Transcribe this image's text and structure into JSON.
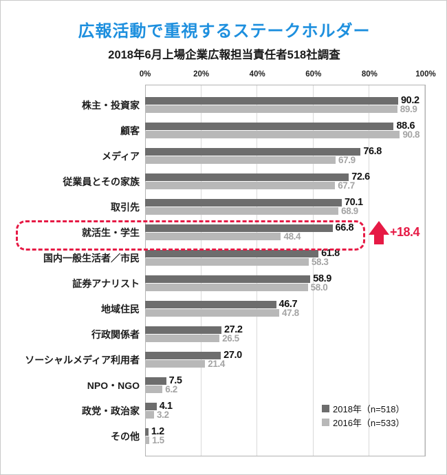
{
  "page": {
    "title": "広報活動で重視するステークホルダー",
    "subtitle": "2018年6月上場企業広報担当責任者518社調査"
  },
  "colors": {
    "title_blue": "#1d8fde",
    "bar_2018": "#6d6d6d",
    "bar_2016": "#b8b8b8",
    "value_2016_text": "#a4a4a4",
    "highlight_red": "#e61a45",
    "grid": "#d9d9d9",
    "plot_border": "#b2b2b2"
  },
  "axis": {
    "ticks": [
      "0%",
      "20%",
      "40%",
      "60%",
      "80%",
      "100%"
    ],
    "max": 100
  },
  "chart_data": {
    "type": "bar",
    "orientation": "horizontal",
    "title": "広報活動で重視するステークホルダー",
    "subtitle": "2018年6月上場企業広報担当責任者518社調査",
    "xlim": [
      0,
      100
    ],
    "grid": true,
    "legend_position": "inside-bottom-right",
    "categories": [
      "株主・投資家",
      "顧客",
      "メディア",
      "従業員とその家族",
      "取引先",
      "就活生・学生",
      "国内一般生活者／市民",
      "証券アナリスト",
      "地域住民",
      "行政関係者",
      "ソーシャルメディア利用者",
      "NPO・NGO",
      "政党・政治家",
      "その他"
    ],
    "series": [
      {
        "name": "2018年（n=518）",
        "values": [
          "90.2",
          "88.6",
          "76.8",
          "72.6",
          "70.1",
          "66.8",
          "61.8",
          "58.9",
          "46.7",
          "27.2",
          "27.0",
          "7.5",
          "4.1",
          "1.2"
        ]
      },
      {
        "name": "2016年（n=533）",
        "values": [
          "89.9",
          "90.8",
          "67.9",
          "67.7",
          "68.9",
          "48.4",
          "58.3",
          "58.0",
          "47.8",
          "26.5",
          "21.4",
          "6.2",
          "3.2",
          "1.5"
        ]
      }
    ],
    "legend": [
      "2018年（n=518）",
      "2016年（n=533）"
    ],
    "highlight": {
      "category": "就活生・学生",
      "index": 5,
      "annotation": "+18.4"
    }
  }
}
